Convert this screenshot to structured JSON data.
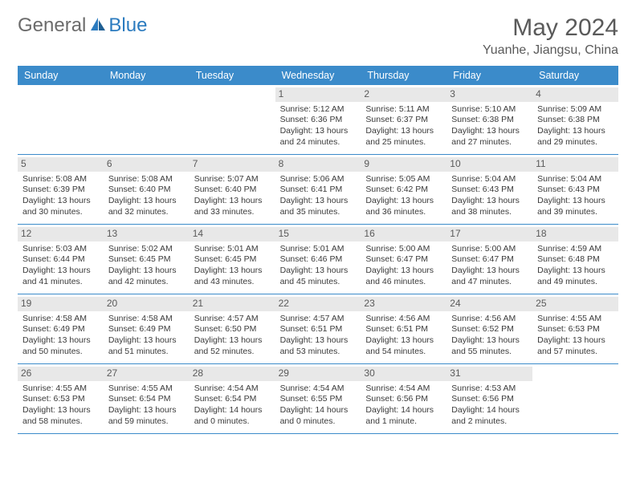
{
  "brand": {
    "part1": "General",
    "part2": "Blue"
  },
  "title": "May 2024",
  "location": "Yuanhe, Jiangsu, China",
  "colors": {
    "header_bg": "#3b8bca",
    "header_fg": "#ffffff",
    "daynum_bg": "#e8e8e8",
    "text": "#3a3a3a",
    "logo_gray": "#6b6b6b",
    "logo_blue": "#2b7bbf"
  },
  "weekdays": [
    "Sunday",
    "Monday",
    "Tuesday",
    "Wednesday",
    "Thursday",
    "Friday",
    "Saturday"
  ],
  "weeks": [
    [
      null,
      null,
      null,
      {
        "n": "1",
        "sr": "5:12 AM",
        "ss": "6:36 PM",
        "dl": "13 hours and 24 minutes."
      },
      {
        "n": "2",
        "sr": "5:11 AM",
        "ss": "6:37 PM",
        "dl": "13 hours and 25 minutes."
      },
      {
        "n": "3",
        "sr": "5:10 AM",
        "ss": "6:38 PM",
        "dl": "13 hours and 27 minutes."
      },
      {
        "n": "4",
        "sr": "5:09 AM",
        "ss": "6:38 PM",
        "dl": "13 hours and 29 minutes."
      }
    ],
    [
      {
        "n": "5",
        "sr": "5:08 AM",
        "ss": "6:39 PM",
        "dl": "13 hours and 30 minutes."
      },
      {
        "n": "6",
        "sr": "5:08 AM",
        "ss": "6:40 PM",
        "dl": "13 hours and 32 minutes."
      },
      {
        "n": "7",
        "sr": "5:07 AM",
        "ss": "6:40 PM",
        "dl": "13 hours and 33 minutes."
      },
      {
        "n": "8",
        "sr": "5:06 AM",
        "ss": "6:41 PM",
        "dl": "13 hours and 35 minutes."
      },
      {
        "n": "9",
        "sr": "5:05 AM",
        "ss": "6:42 PM",
        "dl": "13 hours and 36 minutes."
      },
      {
        "n": "10",
        "sr": "5:04 AM",
        "ss": "6:43 PM",
        "dl": "13 hours and 38 minutes."
      },
      {
        "n": "11",
        "sr": "5:04 AM",
        "ss": "6:43 PM",
        "dl": "13 hours and 39 minutes."
      }
    ],
    [
      {
        "n": "12",
        "sr": "5:03 AM",
        "ss": "6:44 PM",
        "dl": "13 hours and 41 minutes."
      },
      {
        "n": "13",
        "sr": "5:02 AM",
        "ss": "6:45 PM",
        "dl": "13 hours and 42 minutes."
      },
      {
        "n": "14",
        "sr": "5:01 AM",
        "ss": "6:45 PM",
        "dl": "13 hours and 43 minutes."
      },
      {
        "n": "15",
        "sr": "5:01 AM",
        "ss": "6:46 PM",
        "dl": "13 hours and 45 minutes."
      },
      {
        "n": "16",
        "sr": "5:00 AM",
        "ss": "6:47 PM",
        "dl": "13 hours and 46 minutes."
      },
      {
        "n": "17",
        "sr": "5:00 AM",
        "ss": "6:47 PM",
        "dl": "13 hours and 47 minutes."
      },
      {
        "n": "18",
        "sr": "4:59 AM",
        "ss": "6:48 PM",
        "dl": "13 hours and 49 minutes."
      }
    ],
    [
      {
        "n": "19",
        "sr": "4:58 AM",
        "ss": "6:49 PM",
        "dl": "13 hours and 50 minutes."
      },
      {
        "n": "20",
        "sr": "4:58 AM",
        "ss": "6:49 PM",
        "dl": "13 hours and 51 minutes."
      },
      {
        "n": "21",
        "sr": "4:57 AM",
        "ss": "6:50 PM",
        "dl": "13 hours and 52 minutes."
      },
      {
        "n": "22",
        "sr": "4:57 AM",
        "ss": "6:51 PM",
        "dl": "13 hours and 53 minutes."
      },
      {
        "n": "23",
        "sr": "4:56 AM",
        "ss": "6:51 PM",
        "dl": "13 hours and 54 minutes."
      },
      {
        "n": "24",
        "sr": "4:56 AM",
        "ss": "6:52 PM",
        "dl": "13 hours and 55 minutes."
      },
      {
        "n": "25",
        "sr": "4:55 AM",
        "ss": "6:53 PM",
        "dl": "13 hours and 57 minutes."
      }
    ],
    [
      {
        "n": "26",
        "sr": "4:55 AM",
        "ss": "6:53 PM",
        "dl": "13 hours and 58 minutes."
      },
      {
        "n": "27",
        "sr": "4:55 AM",
        "ss": "6:54 PM",
        "dl": "13 hours and 59 minutes."
      },
      {
        "n": "28",
        "sr": "4:54 AM",
        "ss": "6:54 PM",
        "dl": "14 hours and 0 minutes."
      },
      {
        "n": "29",
        "sr": "4:54 AM",
        "ss": "6:55 PM",
        "dl": "14 hours and 0 minutes."
      },
      {
        "n": "30",
        "sr": "4:54 AM",
        "ss": "6:56 PM",
        "dl": "14 hours and 1 minute."
      },
      {
        "n": "31",
        "sr": "4:53 AM",
        "ss": "6:56 PM",
        "dl": "14 hours and 2 minutes."
      },
      null
    ]
  ],
  "labels": {
    "sunrise": "Sunrise:",
    "sunset": "Sunset:",
    "daylight": "Daylight:"
  }
}
